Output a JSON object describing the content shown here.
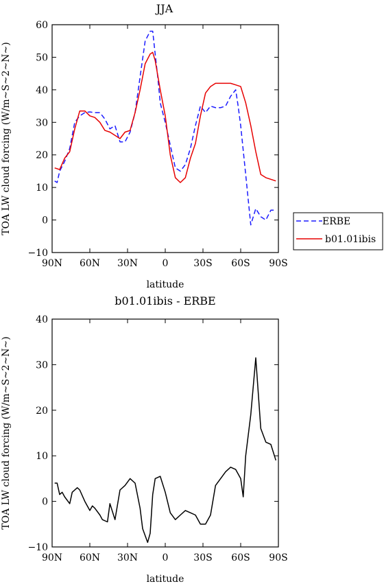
{
  "chart_data": [
    {
      "type": "line",
      "title": "JJA",
      "xlabel": "latitude",
      "ylabel": "TOA LW cloud forcing (W/m~S~2~N~)",
      "xlim": [
        90,
        -90
      ],
      "ylim": [
        -10,
        60
      ],
      "xticks": [
        {
          "value": 90,
          "label": "90N"
        },
        {
          "value": 60,
          "label": "60N"
        },
        {
          "value": 30,
          "label": "30N"
        },
        {
          "value": 0,
          "label": "0"
        },
        {
          "value": -30,
          "label": "30S"
        },
        {
          "value": -60,
          "label": "60S"
        },
        {
          "value": -90,
          "label": "90S"
        }
      ],
      "yticks": [
        -10,
        0,
        10,
        20,
        30,
        40,
        50,
        60
      ],
      "legend_position": "right",
      "series": [
        {
          "name": "ERBE",
          "color": "#1a1aff",
          "dash": "dashed",
          "x": [
            88,
            86,
            84,
            80,
            76,
            72,
            68,
            64,
            60,
            56,
            52,
            48,
            44,
            40,
            36,
            32,
            28,
            24,
            20,
            16,
            12,
            10,
            8,
            6,
            4,
            2,
            0,
            -4,
            -8,
            -12,
            -16,
            -20,
            -24,
            -28,
            -32,
            -36,
            -40,
            -44,
            -48,
            -52,
            -56,
            -58,
            -60,
            -64,
            -68,
            -72,
            -76,
            -80,
            -84,
            -88
          ],
          "y": [
            12,
            11.5,
            15,
            18,
            22,
            30,
            32,
            33,
            33.2,
            33,
            33,
            31,
            28,
            29,
            24,
            24,
            27,
            33,
            44,
            55,
            58,
            58,
            51,
            44,
            36,
            33,
            30,
            23,
            16,
            15,
            17,
            22,
            29,
            35,
            33,
            35,
            34.5,
            34.5,
            35,
            38,
            40,
            35,
            29,
            14,
            -1.5,
            3.5,
            1,
            0,
            3,
            3
          ]
        },
        {
          "name": "b01.01ibis",
          "color": "#e60000",
          "dash": "solid",
          "x": [
            88,
            84,
            80,
            76,
            72,
            68,
            64,
            60,
            56,
            52,
            48,
            44,
            40,
            36,
            32,
            28,
            24,
            20,
            16,
            12,
            10,
            8,
            4,
            0,
            -4,
            -8,
            -12,
            -16,
            -20,
            -24,
            -28,
            -32,
            -36,
            -40,
            -44,
            -48,
            -52,
            -56,
            -60,
            -64,
            -68,
            -72,
            -76,
            -80,
            -84,
            -88
          ],
          "y": [
            16,
            15.5,
            19,
            21,
            28,
            33.5,
            33.5,
            32,
            31.5,
            30,
            27.5,
            27,
            26,
            25,
            27,
            27.5,
            33,
            40,
            48,
            51,
            51.5,
            49,
            40,
            32,
            20,
            13,
            11.5,
            13,
            19,
            23.5,
            32,
            39,
            41,
            42,
            42,
            42,
            42,
            41.5,
            41,
            36,
            29,
            21,
            14,
            13,
            12.5,
            12
          ]
        }
      ]
    },
    {
      "type": "line",
      "title": "b01.01ibis - ERBE",
      "xlabel": "latitude",
      "ylabel": "TOA LW cloud forcing (W/m~S~2~N~)",
      "xlim": [
        90,
        -90
      ],
      "ylim": [
        -10,
        40
      ],
      "xticks": [
        {
          "value": 90,
          "label": "90N"
        },
        {
          "value": 60,
          "label": "60N"
        },
        {
          "value": 30,
          "label": "30N"
        },
        {
          "value": 0,
          "label": "0"
        },
        {
          "value": -30,
          "label": "30S"
        },
        {
          "value": -60,
          "label": "60S"
        },
        {
          "value": -90,
          "label": "90S"
        }
      ],
      "yticks": [
        -10,
        0,
        10,
        20,
        30,
        40
      ],
      "series": [
        {
          "color": "#000000",
          "dash": "solid",
          "x": [
            88,
            86,
            84,
            82,
            80,
            76,
            74,
            70,
            68,
            64,
            60,
            58,
            56,
            52,
            50,
            46,
            44,
            40,
            36,
            32,
            28,
            24,
            20,
            18,
            14,
            12,
            10,
            8,
            4,
            0,
            -4,
            -8,
            -12,
            -16,
            -20,
            -24,
            -28,
            -32,
            -36,
            -40,
            -44,
            -48,
            -52,
            -56,
            -60,
            -62,
            -64,
            -68,
            -72,
            -76,
            -80,
            -84,
            -88
          ],
          "y": [
            4,
            4,
            1.5,
            2,
            1,
            -0.5,
            2,
            3,
            2.5,
            0,
            -2,
            -1,
            -1.5,
            -3,
            -4,
            -4.5,
            -0.5,
            -4,
            2.5,
            3.5,
            5,
            4,
            -1.5,
            -6,
            -9,
            -7,
            1.5,
            5,
            5.5,
            2,
            -2.5,
            -4,
            -3,
            -2,
            -2.5,
            -3,
            -5,
            -5,
            -3,
            3.5,
            5,
            6.5,
            7.5,
            7,
            5,
            1,
            10,
            19,
            31.5,
            16,
            13,
            12.5,
            9
          ]
        }
      ]
    }
  ]
}
